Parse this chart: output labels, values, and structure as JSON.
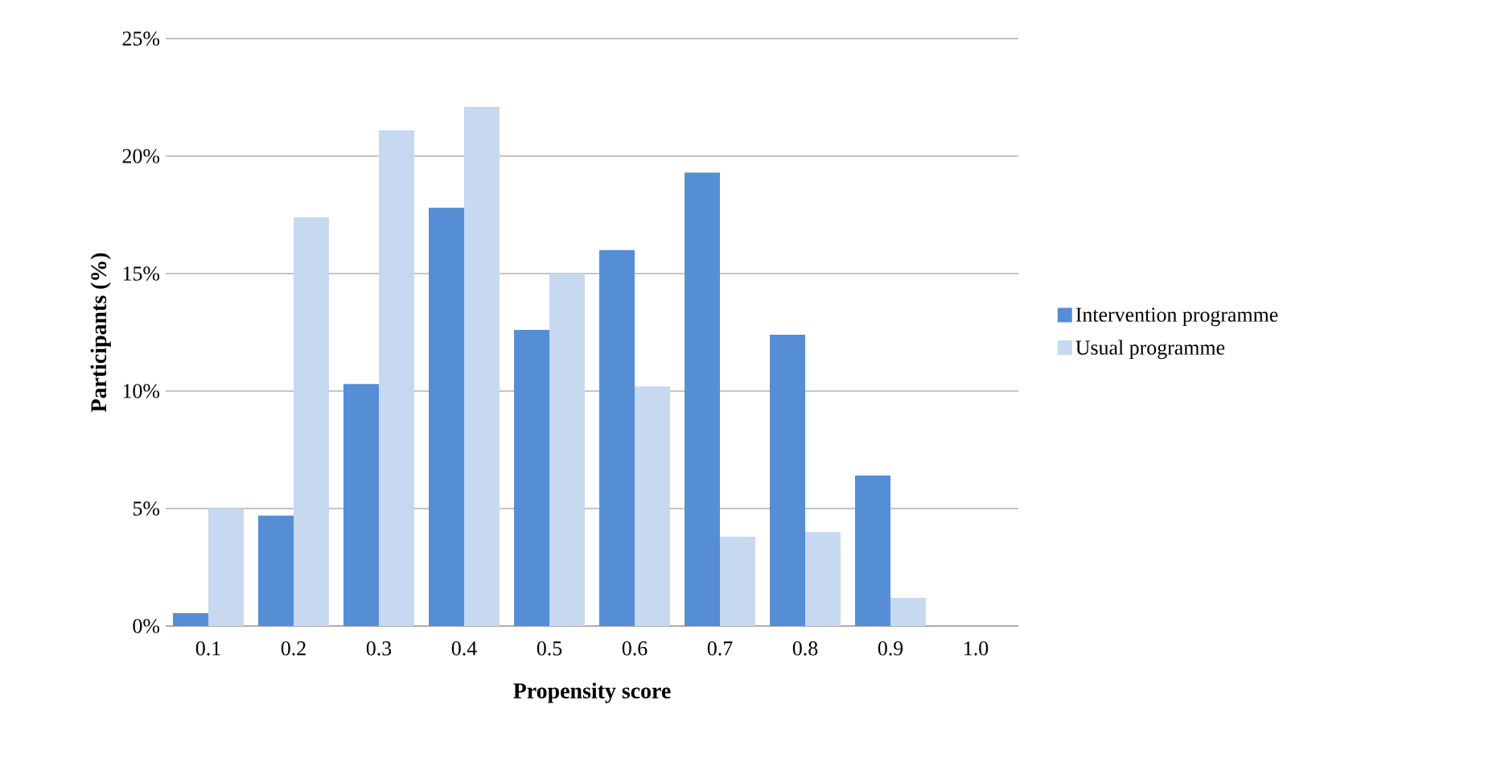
{
  "chart_data": {
    "type": "bar",
    "xlabel": "Propensity score",
    "ylabel": "Participants (%)",
    "categories": [
      "0.1",
      "0.2",
      "0.3",
      "0.4",
      "0.5",
      "0.6",
      "0.7",
      "0.8",
      "0.9",
      "1.0"
    ],
    "series": [
      {
        "name": "Intervention programme",
        "color": "#558ed5",
        "values": [
          0.55,
          4.7,
          10.3,
          17.8,
          12.6,
          16.0,
          19.3,
          12.4,
          6.4,
          0
        ]
      },
      {
        "name": "Usual programme",
        "color": "#c6d9f1",
        "values": [
          5.0,
          17.4,
          21.1,
          22.1,
          15.0,
          10.2,
          3.8,
          4.0,
          1.2,
          0
        ]
      }
    ],
    "ylim": [
      0,
      25
    ],
    "yticks": [
      {
        "value": 0,
        "label": "0%"
      },
      {
        "value": 5,
        "label": "5%"
      },
      {
        "value": 10,
        "label": "10%"
      },
      {
        "value": 15,
        "label": "15%"
      },
      {
        "value": 20,
        "label": "20%"
      },
      {
        "value": 25,
        "label": "25%"
      }
    ],
    "grid": "y",
    "legend": "right"
  }
}
